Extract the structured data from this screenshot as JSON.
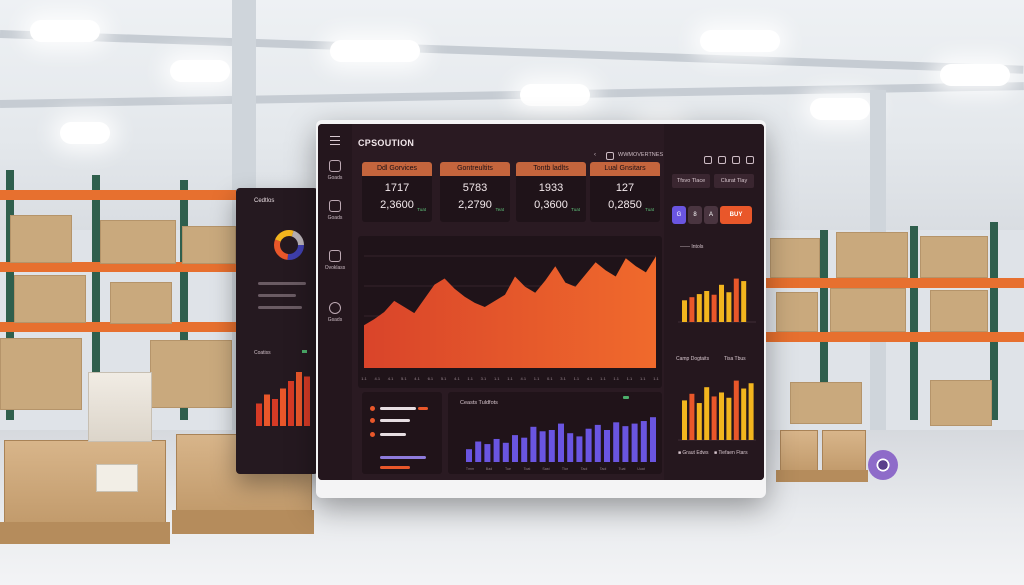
{
  "dashboard": {
    "brand": "CPSOUTION",
    "top_right": "WWMOVERTNES",
    "sidebar_items": [
      "Goads",
      "Goads",
      "Ovoklass",
      "Gsads"
    ],
    "kpis": [
      {
        "label": "Ddl Gorvices",
        "value1": "1717",
        "value2": "2,3600",
        "tag": "Tuat"
      },
      {
        "label": "Gontreultits",
        "value1": "5783",
        "value2": "2,2790",
        "tag": "Teat"
      },
      {
        "label": "Tontb ladlts",
        "value1": "1933",
        "value2": "0,3600",
        "tag": "Tuat"
      },
      {
        "label": "Lual Gnsitars",
        "value1": "127",
        "value2": "0,2850",
        "tag": "Tuat"
      }
    ],
    "right_col": {
      "btn1": "Tfsvo Tlace",
      "btn2": "Clurat Tlay",
      "pill_letters": [
        "G",
        "8",
        "A"
      ],
      "pill_buy": "BUY",
      "label_top": "Intols",
      "label_mid_left": "Camp Dogtaits",
      "label_mid_right": "Tisa Tbus",
      "legend_a": "Graut Edws",
      "legend_b": "Tiefaen Ftars"
    },
    "bottom_mid_title": "Ceasts Tuldfots",
    "area_x_ticks": [
      "1.1",
      "4.1",
      "4.1",
      "5.1",
      "4.1",
      "6.1",
      "5.1",
      "4.1",
      "1.1",
      "3.1",
      "1.1",
      "1.1",
      "4.1",
      "1.1",
      "0.1",
      "3.1",
      "1.1",
      "4.1",
      "1.1",
      "1.1",
      "1.1",
      "1.1",
      "1.1"
    ],
    "bar_x_ticks": [
      "Tmm",
      "Bad",
      "Tue",
      "Toat",
      "Sast",
      "Tlor",
      "Taol",
      "Taol",
      "Tuat",
      "Uuat"
    ]
  },
  "tablet": {
    "title": "Cedtlos",
    "label": "Coatiss"
  },
  "charts": {
    "area_values": [
      42,
      48,
      55,
      66,
      60,
      54,
      68,
      82,
      88,
      78,
      70,
      64,
      60,
      66,
      72,
      90,
      80,
      74,
      86,
      100,
      84,
      80,
      92,
      104,
      96,
      90,
      108,
      100,
      94,
      110
    ],
    "purple_bars": [
      20,
      32,
      28,
      36,
      30,
      42,
      38,
      55,
      48,
      50,
      60,
      45,
      40,
      52,
      58,
      50,
      62,
      56,
      60,
      64,
      70
    ],
    "gold_bars_top": [
      35,
      40,
      45,
      50,
      44,
      60,
      48,
      70,
      66
    ],
    "gold_bars_bottom": [
      60,
      70,
      56,
      80,
      66,
      72,
      64,
      90,
      78,
      86
    ],
    "tablet_bars": [
      30,
      42,
      36,
      50,
      60,
      72,
      66
    ]
  },
  "colors": {
    "accent": "#e9572a",
    "purple": "#6a55e0",
    "gold": "#f2b51e",
    "panel": "#2a1a22"
  }
}
